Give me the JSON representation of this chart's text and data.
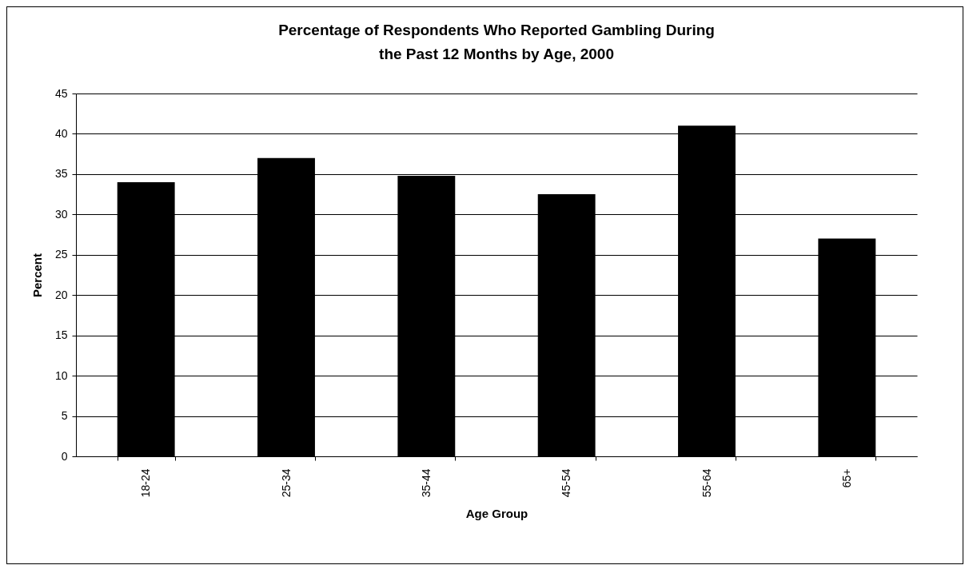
{
  "chart_data": {
    "type": "bar",
    "title": "Percentage of Respondents Who Reported Gambling During the Past 12 Months by Age, 2000",
    "xlabel": "Age Group",
    "ylabel": "Percent",
    "categories": [
      "18-24",
      "25-34",
      "35-44",
      "45-54",
      "55-64",
      "65+"
    ],
    "values": [
      34,
      37,
      34.8,
      32.5,
      41,
      27
    ],
    "color": "#000000",
    "ylim": [
      0,
      45
    ],
    "yticks": [
      0,
      5,
      10,
      15,
      20,
      25,
      30,
      35,
      40,
      45
    ],
    "grid": "y"
  }
}
